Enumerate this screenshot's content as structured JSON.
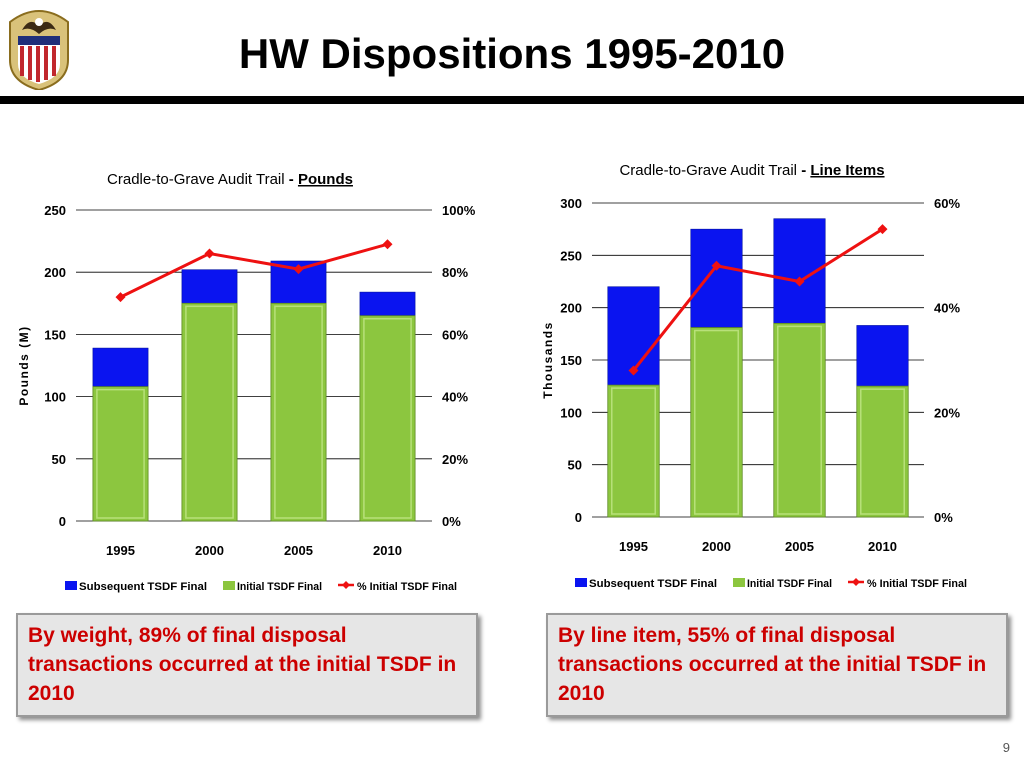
{
  "title": "HW Dispositions 1995-2010",
  "page_number": "9",
  "legend": [
    "Subsequent TSDF Final",
    "Initial TSDF Final",
    "% Initial TSDF Final"
  ],
  "callouts": {
    "left": "By weight, 89% of final disposal transactions occurred at the initial TSDF in 2010",
    "right": "By line item, 55% of final disposal transactions occurred at the initial TSDF in 2010"
  },
  "colors": {
    "subsequent": "#0a14f0",
    "initial": "#8cc63f",
    "percent_line": "#ee1111",
    "callout_text": "#cc0000"
  },
  "chart_data": [
    {
      "type": "bar",
      "stacked": true,
      "title": "Cradle-to-Grave Audit Trail",
      "title_suffix": "Pounds",
      "categories": [
        "1995",
        "2000",
        "2005",
        "2010"
      ],
      "ylabel": "Pounds (M)",
      "ylim": [
        0,
        250
      ],
      "y_ticks": [
        "0",
        "50",
        "100",
        "150",
        "200",
        "250"
      ],
      "y2lim": [
        0,
        100
      ],
      "y2_ticks": [
        "0%",
        "20%",
        "40%",
        "60%",
        "80%",
        "100%"
      ],
      "grid": true,
      "legend_position": "bottom",
      "series": [
        {
          "name": "Initial TSDF Final",
          "values": [
            108,
            175,
            175,
            165
          ]
        },
        {
          "name": "Subsequent TSDF Final",
          "values": [
            31,
            27,
            34,
            19
          ]
        },
        {
          "name": "% Initial TSDF Final",
          "axis": "secondary",
          "type": "line",
          "values": [
            72,
            86,
            81,
            89
          ]
        }
      ]
    },
    {
      "type": "bar",
      "stacked": true,
      "title": "Cradle-to-Grave Audit Trail",
      "title_suffix": "Line Items",
      "categories": [
        "1995",
        "2000",
        "2005",
        "2010"
      ],
      "ylabel": "Thousands",
      "ylim": [
        0,
        300
      ],
      "y_ticks": [
        "0",
        "50",
        "100",
        "150",
        "200",
        "250",
        "300"
      ],
      "y2lim": [
        0,
        60
      ],
      "y2_ticks": [
        "0%",
        "20%",
        "40%",
        "60%"
      ],
      "grid": true,
      "legend_position": "bottom",
      "series": [
        {
          "name": "Initial TSDF Final",
          "values": [
            126,
            181,
            185,
            125
          ]
        },
        {
          "name": "Subsequent TSDF Final",
          "values": [
            94,
            94,
            100,
            58
          ]
        },
        {
          "name": "% Initial TSDF Final",
          "axis": "secondary",
          "type": "line",
          "values": [
            28,
            48,
            45,
            55
          ]
        }
      ]
    }
  ]
}
